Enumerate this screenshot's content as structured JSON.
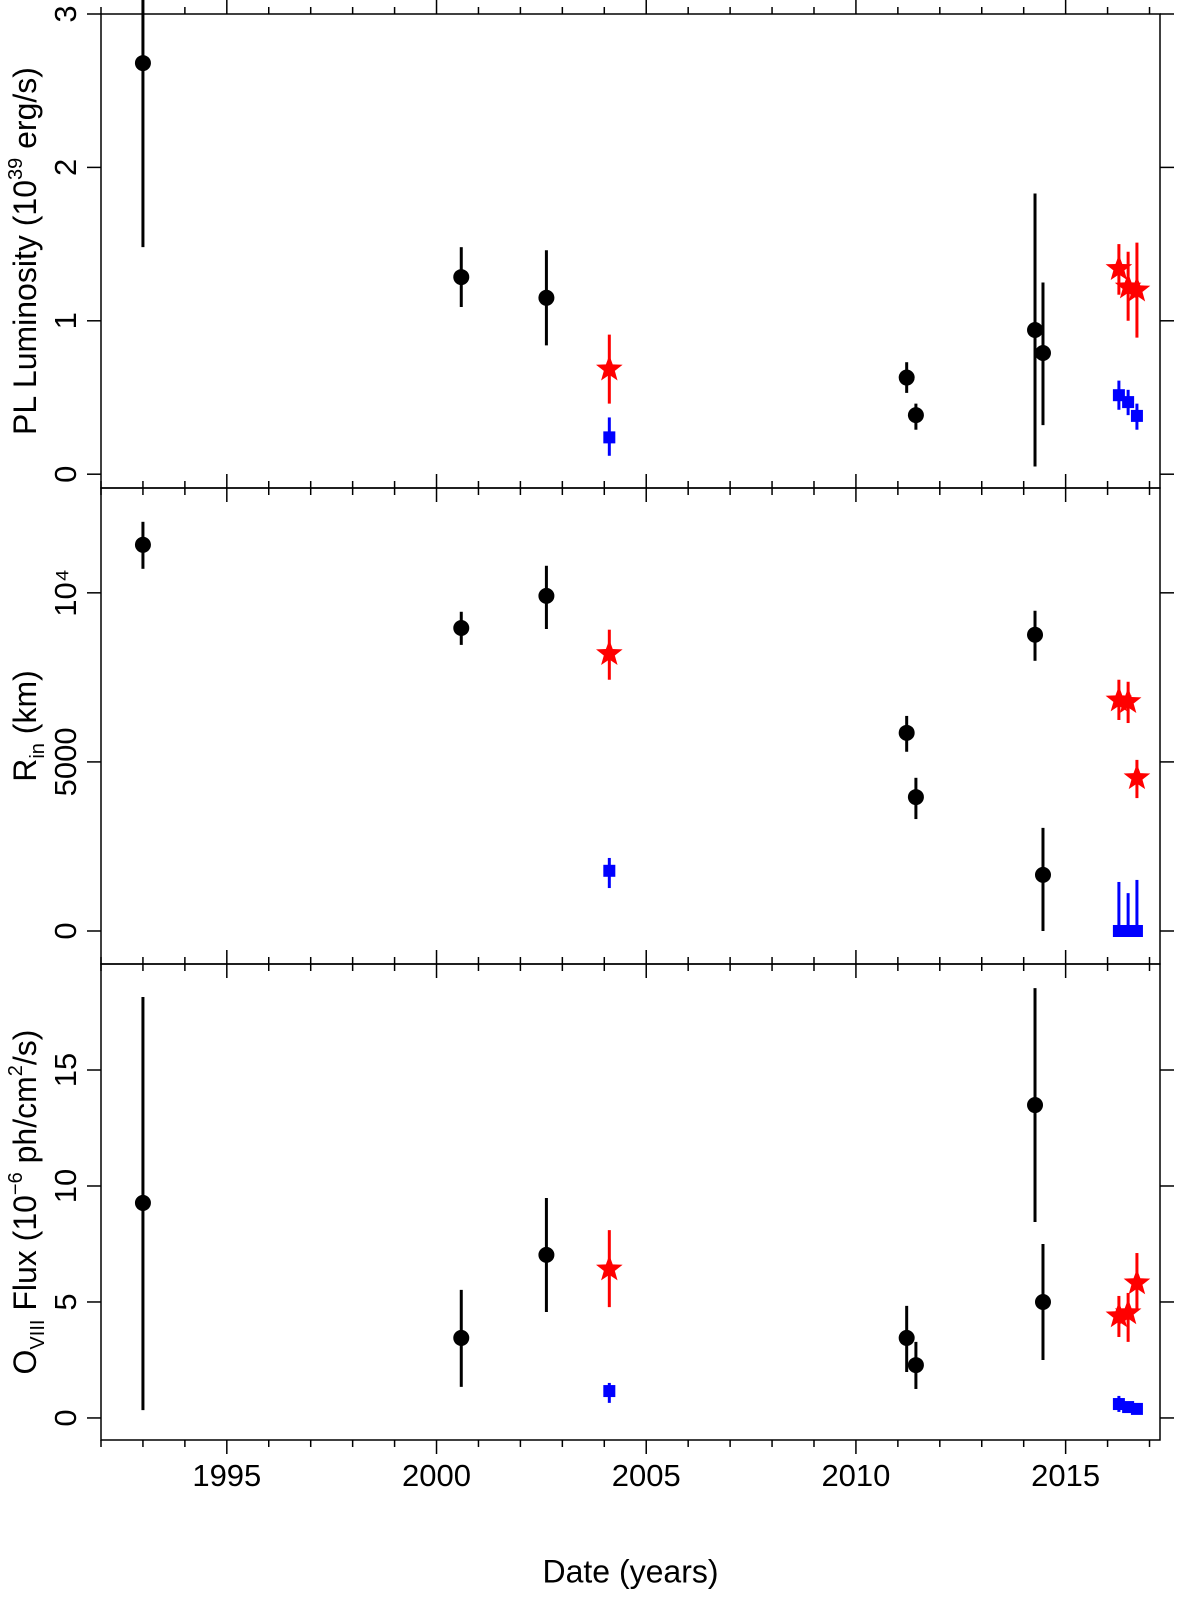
{
  "chart_data": [
    {
      "type": "scatter",
      "ylabel": [
        {
          "text": "PL Luminosity (10"
        },
        {
          "text": "39",
          "script": "super"
        },
        {
          "text": " erg/s)"
        }
      ],
      "xlim": [
        1992,
        2017.25
      ],
      "xticks": [
        1995,
        2000,
        2005,
        2010,
        2015
      ],
      "xminor": [
        1992,
        1993,
        1994,
        1996,
        1997,
        1998,
        1999,
        2001,
        2002,
        2003,
        2004,
        2006,
        2007,
        2008,
        2009,
        2011,
        2012,
        2013,
        2014,
        2016,
        2017
      ],
      "ylim": [
        -0.09,
        3.0
      ],
      "yticks": [
        0,
        1,
        2,
        3
      ],
      "series": [
        {
          "color": "#000000",
          "marker": "circle",
          "x": [
            1993.0,
            2000.59,
            2002.62,
            2011.21,
            2011.43,
            2014.27,
            2014.46
          ],
          "values": [
            2.68,
            1.285,
            1.15,
            0.63,
            0.385,
            0.94,
            0.79
          ],
          "low": [
            1.48,
            1.09,
            0.84,
            0.53,
            0.29,
            0.05,
            0.32
          ],
          "high": [
            3.9,
            1.48,
            1.46,
            0.73,
            0.46,
            1.83,
            1.25
          ]
        },
        {
          "color": "#ff0000",
          "marker": "star",
          "x": [
            2004.12,
            2016.27,
            2016.49,
            2016.7
          ],
          "values": [
            0.685,
            1.34,
            1.22,
            1.2
          ],
          "low": [
            0.46,
            1.17,
            1.0,
            0.89
          ],
          "high": [
            0.91,
            1.5,
            1.45,
            1.51
          ]
        },
        {
          "color": "#0000ff",
          "marker": "square",
          "x": [
            2004.12,
            2016.27,
            2016.49,
            2016.7
          ],
          "values": [
            0.24,
            0.515,
            0.47,
            0.38
          ],
          "low": [
            0.12,
            0.42,
            0.385,
            0.29
          ],
          "high": [
            0.37,
            0.61,
            0.55,
            0.46
          ]
        }
      ]
    },
    {
      "type": "scatter",
      "ylabel": [
        {
          "text": "R"
        },
        {
          "text": "in",
          "script": "sub"
        },
        {
          "text": " (km)"
        }
      ],
      "xlim": [
        1992,
        2017.25
      ],
      "xticks": [
        1995,
        2000,
        2005,
        2010,
        2015
      ],
      "xminor": [
        1992,
        1993,
        1994,
        1996,
        1997,
        1998,
        1999,
        2001,
        2002,
        2003,
        2004,
        2006,
        2007,
        2008,
        2009,
        2011,
        2012,
        2013,
        2014,
        2016,
        2017
      ],
      "ylim": [
        -976,
        13100
      ],
      "yticks": [
        0,
        5000,
        {
          "value": 10000,
          "label": "10⁴"
        }
      ],
      "series": [
        {
          "color": "#000000",
          "marker": "circle",
          "x": [
            1993.0,
            2000.59,
            2002.62,
            2011.21,
            2011.43,
            2014.27,
            2014.46
          ],
          "values": [
            11420,
            8960,
            9910,
            5860,
            3960,
            8760,
            1660
          ],
          "low": [
            10710,
            8460,
            8930,
            5300,
            3310,
            7990,
            0
          ],
          "high": [
            12100,
            9440,
            10800,
            6360,
            4530,
            9470,
            3050
          ]
        },
        {
          "color": "#ff0000",
          "marker": "star",
          "x": [
            2004.12,
            2016.27,
            2016.49,
            2016.7
          ],
          "values": [
            8200,
            6830,
            6780,
            4530
          ],
          "low": [
            7430,
            6240,
            6150,
            3930
          ],
          "high": [
            8910,
            7430,
            7370,
            5060
          ]
        },
        {
          "color": "#0000ff",
          "marker": "square",
          "x": [
            2004.12,
            2016.27,
            2016.49,
            2016.7
          ],
          "values": [
            1780,
            0,
            0,
            0
          ],
          "low": [
            1270,
            0,
            0,
            0
          ],
          "high": [
            2160,
            1450,
            1120,
            1510
          ]
        }
      ]
    },
    {
      "type": "scatter",
      "ylabel": [
        {
          "text": "O"
        },
        {
          "text": "VIII",
          "script": "sub"
        },
        {
          "text": " Flux (10"
        },
        {
          "text": "−6",
          "script": "super"
        },
        {
          "text": " ph/cm"
        },
        {
          "text": "2",
          "script": "super"
        },
        {
          "text": "/s)"
        }
      ],
      "xlabel": "Date (years)",
      "xlim": [
        1992,
        2017.25
      ],
      "xticks": [
        1995,
        2000,
        2005,
        2010,
        2015
      ],
      "xminor": [
        1992,
        1993,
        1994,
        1996,
        1997,
        1998,
        1999,
        2001,
        2002,
        2003,
        2004,
        2006,
        2007,
        2008,
        2009,
        2011,
        2012,
        2013,
        2014,
        2016,
        2017
      ],
      "ylim": [
        -0.95,
        19.57
      ],
      "yticks": [
        0,
        5,
        10,
        15
      ],
      "series": [
        {
          "color": "#000000",
          "marker": "circle",
          "x": [
            1993.0,
            2000.59,
            2002.62,
            2011.21,
            2011.43,
            2014.27,
            2014.46
          ],
          "values": [
            9.27,
            3.45,
            7.03,
            3.45,
            2.28,
            13.49,
            5.0
          ],
          "low": [
            0.34,
            1.34,
            4.57,
            1.98,
            1.25,
            8.45,
            2.5
          ],
          "high": [
            18.15,
            5.52,
            9.48,
            4.83,
            3.28,
            18.53,
            7.5
          ]
        },
        {
          "color": "#ff0000",
          "marker": "star",
          "x": [
            2004.12,
            2016.27,
            2016.49,
            2016.7
          ],
          "values": [
            6.42,
            4.4,
            4.53,
            5.82
          ],
          "low": [
            4.78,
            3.49,
            3.28,
            4.61
          ],
          "high": [
            8.1,
            5.26,
            5.39,
            7.11
          ]
        },
        {
          "color": "#0000ff",
          "marker": "square",
          "x": [
            2004.12,
            2016.27,
            2016.49,
            2016.7
          ],
          "values": [
            1.16,
            0.6,
            0.47,
            0.39
          ],
          "low": [
            0.65,
            0.26,
            0.26,
            0.17
          ],
          "high": [
            1.51,
            0.95,
            0.69,
            0.6
          ]
        }
      ]
    }
  ]
}
